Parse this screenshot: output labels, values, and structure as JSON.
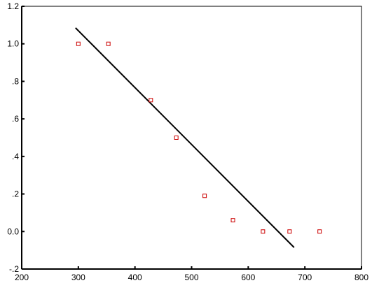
{
  "chart_data": {
    "type": "scatter",
    "title": "",
    "xlabel": "",
    "ylabel": "",
    "xlim": [
      200,
      800
    ],
    "ylim": [
      -0.2,
      1.2
    ],
    "grid": false,
    "x_ticks": [
      200,
      300,
      400,
      500,
      600,
      700,
      800
    ],
    "x_tick_labels": [
      "200",
      "300",
      "400",
      "500",
      "600",
      "700",
      "800"
    ],
    "y_ticks": [
      -0.2,
      0.0,
      0.2,
      0.4,
      0.6,
      0.8,
      1.0,
      1.2
    ],
    "y_tick_labels": [
      "-.2",
      "0.0",
      ".2",
      ".4",
      ".6",
      ".8",
      "1.0",
      "1.2"
    ],
    "series": [
      {
        "type": "scatter",
        "marker": "hollow-square",
        "color": "#cc0000",
        "points": [
          {
            "x": 300,
            "y": 1.0
          },
          {
            "x": 353,
            "y": 1.0
          },
          {
            "x": 428,
            "y": 0.7
          },
          {
            "x": 473,
            "y": 0.5
          },
          {
            "x": 523,
            "y": 0.19
          },
          {
            "x": 573,
            "y": 0.06
          },
          {
            "x": 626,
            "y": 0.0
          },
          {
            "x": 673,
            "y": 0.0
          },
          {
            "x": 726,
            "y": 0.0
          }
        ]
      },
      {
        "type": "line",
        "color": "#000000",
        "points": [
          {
            "x": 295,
            "y": 1.085
          },
          {
            "x": 681,
            "y": -0.085
          }
        ]
      }
    ]
  }
}
